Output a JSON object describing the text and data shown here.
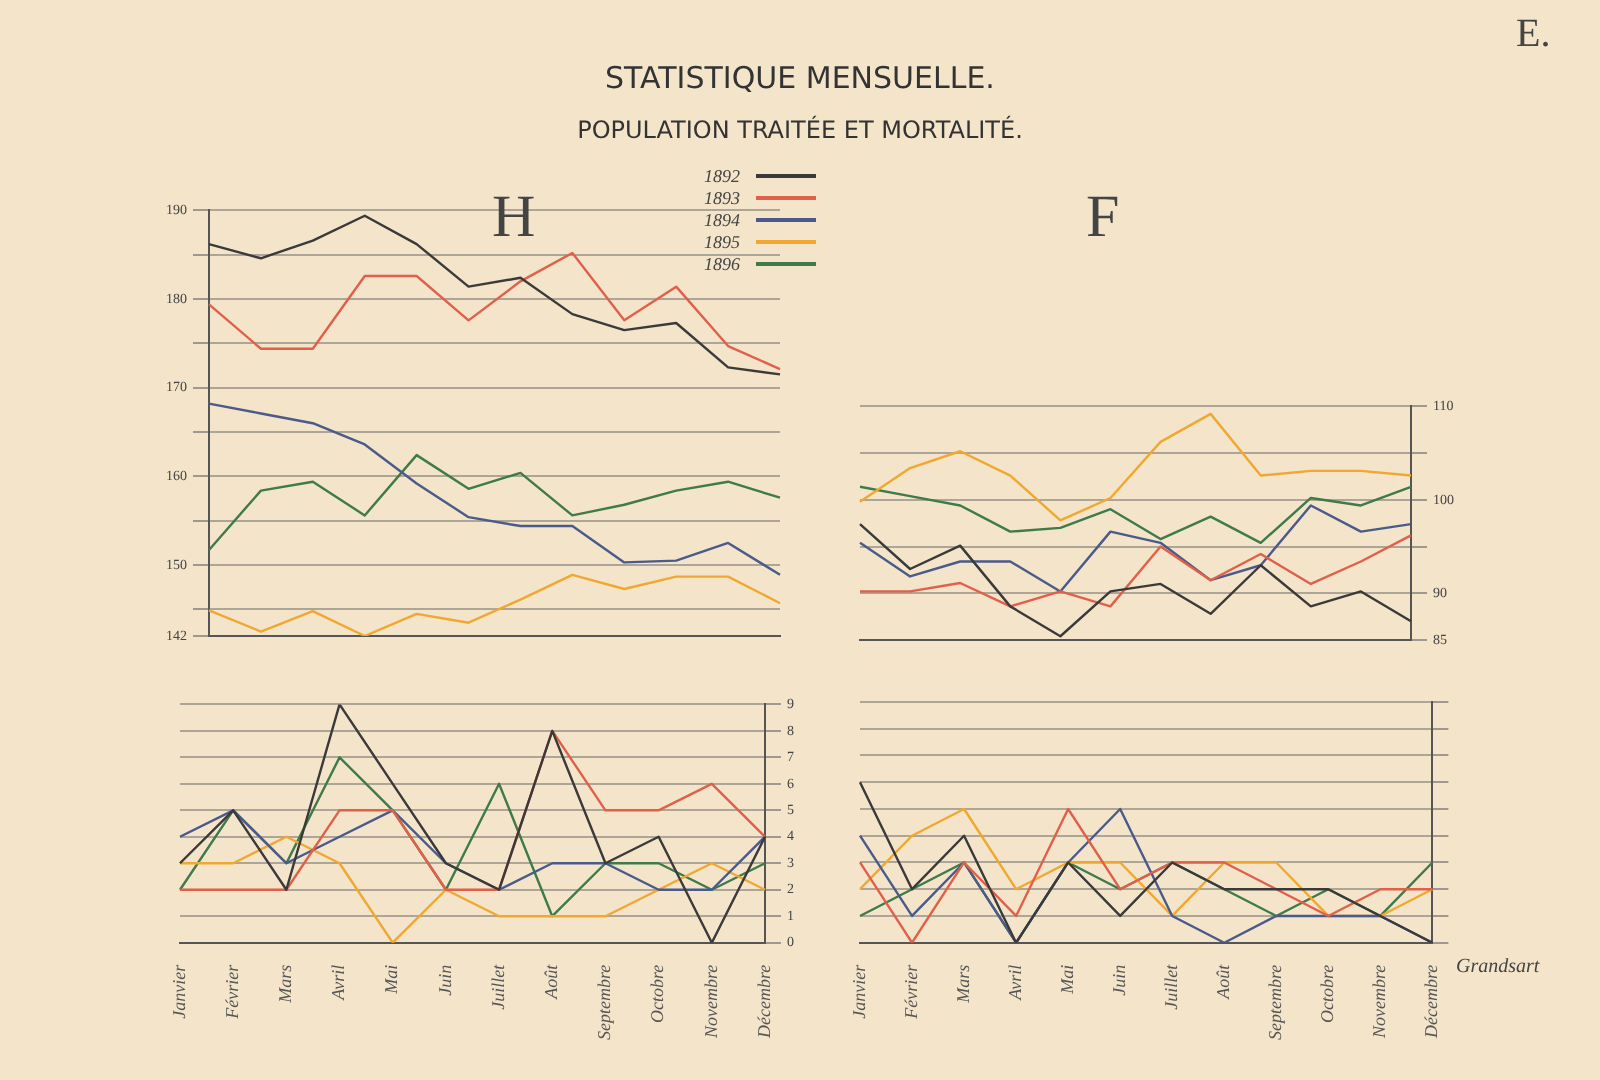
{
  "chart_data": [
    {
      "type": "line",
      "title": "STATISTIQUE MENSUELLE.",
      "subtitle": "POPULATION TRAITÉE ET MORTALITÉ.",
      "annotations": [
        "E.",
        "H"
      ],
      "categories": [
        null,
        null,
        null,
        null,
        null,
        null,
        null,
        null,
        null,
        null,
        null,
        null
      ],
      "series": [
        {
          "name": "1892",
          "color": "#3a3a3a",
          "values": [
            186.2,
            184.6,
            186.6,
            189.4,
            186.2,
            181.4,
            182.4,
            178.3,
            176.5,
            177.3,
            172.3,
            171.5
          ]
        },
        {
          "name": "1893",
          "color": "#e0604a",
          "values": [
            179.4,
            174.4,
            174.4,
            182.6,
            182.6,
            177.6,
            182.0,
            185.2,
            177.6,
            181.4,
            174.7,
            172.1
          ]
        },
        {
          "name": "1894",
          "color": "#4a5a8a",
          "values": [
            168.2,
            167.1,
            166.0,
            163.6,
            159.2,
            155.4,
            154.4,
            154.4,
            150.3,
            150.5,
            152.5,
            148.9
          ]
        },
        {
          "name": "1895",
          "color": "#f0a830",
          "values": [
            144.9,
            142.5,
            144.8,
            142,
            144.5,
            143.5,
            146.1,
            148.9,
            147.3,
            148.7,
            148.7,
            145.7
          ]
        },
        {
          "name": "1896",
          "color": "#3f7a4a",
          "values": [
            151.7,
            158.4,
            159.4,
            155.6,
            162.4,
            158.6,
            160.4,
            155.6,
            156.8,
            158.4,
            159.4,
            157.6
          ]
        }
      ],
      "ylim": [
        142,
        190
      ],
      "yticks": [
        142,
        {
          "value": 145,
          "label": null
        },
        150,
        {
          "value": 155,
          "label": null
        },
        160,
        {
          "value": 165,
          "label": null
        },
        170,
        {
          "value": 175,
          "label": null
        },
        180,
        {
          "value": 185,
          "label": null
        },
        190
      ],
      "grid": "y",
      "legend": "top right",
      "tick_labels": "y"
    },
    {
      "type": "line",
      "categories": [
        "Janvier",
        "Février",
        "Mars",
        "Avril",
        "Mai",
        "Juin",
        "Juillet",
        "Août",
        "Septembre",
        "Octobre",
        "Novembre",
        "Décembre"
      ],
      "series": [
        {
          "color": "#3a3a3a",
          "values": [
            3,
            5,
            2,
            9,
            6,
            3,
            2,
            8,
            3,
            4,
            0,
            4
          ]
        },
        {
          "color": "#e0604a",
          "values": [
            2,
            2,
            2,
            5,
            5,
            2,
            2,
            8,
            5,
            5,
            6,
            4
          ]
        },
        {
          "color": "#4a5a8a",
          "values": [
            4,
            5,
            3,
            4,
            5,
            3,
            2,
            3,
            3,
            2,
            2,
            4
          ]
        },
        {
          "color": "#f0a830",
          "values": [
            3,
            3,
            4,
            3,
            0,
            2,
            1,
            1,
            1,
            2,
            3,
            2
          ]
        },
        {
          "color": "#3f7a4a",
          "values": [
            2,
            5,
            3,
            7,
            5,
            2,
            6,
            1,
            3,
            3,
            2,
            3
          ]
        }
      ],
      "ylim": [
        0,
        9
      ],
      "yticks": [
        0,
        1,
        2,
        3,
        4,
        5,
        6,
        7,
        8,
        9
      ],
      "grid": "y"
    },
    {
      "type": "line",
      "annotations": [
        "F"
      ],
      "categories": [
        null,
        null,
        null,
        null,
        null,
        null,
        null,
        null,
        null,
        null,
        null,
        null
      ],
      "series": [
        {
          "color": "#3a3a3a",
          "values": [
            97.4,
            92.6,
            95.1,
            88.6,
            85.4,
            90.2,
            91.0,
            87.8,
            93.0,
            88.6,
            90.2,
            87.0
          ]
        },
        {
          "color": "#e0604a",
          "values": [
            90.2,
            90.2,
            91.1,
            88.6,
            90.2,
            88.6,
            95.0,
            91.4,
            94.2,
            91.0,
            93.4,
            96.2
          ]
        },
        {
          "color": "#4a5a8a",
          "values": [
            95.4,
            91.8,
            93.4,
            93.4,
            90.2,
            96.6,
            95.4,
            91.4,
            93.0,
            99.4,
            96.6,
            97.4
          ]
        },
        {
          "color": "#f0a830",
          "values": [
            99.8,
            103.4,
            105.2,
            102.6,
            97.8,
            100.2,
            106.2,
            109.2,
            102.6,
            103.1,
            103.1,
            102.6
          ]
        },
        {
          "color": "#3f7a4a",
          "values": [
            101.4,
            100.4,
            99.4,
            96.6,
            97.0,
            99.0,
            95.8,
            98.2,
            95.4,
            100.2,
            99.4,
            101.4
          ]
        }
      ],
      "ylim": [
        85,
        110
      ],
      "yticks": [
        85,
        90,
        {
          "value": 95,
          "label": null
        },
        100,
        {
          "value": 105,
          "label": null
        },
        110
      ],
      "grid": "y",
      "tick_labels": "y"
    },
    {
      "type": "line",
      "annotations": [
        "Grandsart"
      ],
      "categories": [
        "Janvier",
        "Février",
        "Mars",
        "Avril",
        "Mai",
        "Juin",
        "Juillet",
        "Août",
        "Septembre",
        "Octobre",
        "Novembre",
        "Décembre"
      ],
      "series": [
        {
          "color": "#3a3a3a",
          "values": [
            6,
            2,
            4,
            0,
            3,
            1,
            3,
            2,
            2,
            2,
            1,
            0
          ]
        },
        {
          "color": "#e0604a",
          "values": [
            3,
            0,
            3,
            1,
            5,
            2,
            3,
            3,
            2,
            1,
            2,
            2
          ]
        },
        {
          "color": "#4a5a8a",
          "values": [
            4,
            1,
            3,
            0,
            3,
            5,
            1,
            0,
            1,
            1,
            1,
            0
          ]
        },
        {
          "color": "#f0a830",
          "values": [
            2,
            4,
            5,
            2,
            3,
            3,
            1,
            3,
            3,
            1,
            1,
            2
          ]
        },
        {
          "color": "#3f7a4a",
          "values": [
            1,
            2,
            3,
            0,
            3,
            2,
            3,
            2,
            1,
            2,
            1,
            3
          ]
        }
      ],
      "ylim": [
        0,
        9
      ],
      "yticks": [
        0,
        1,
        2,
        3,
        4,
        5,
        6,
        7,
        8,
        9
      ],
      "grid": "y",
      "tick_labels": "x"
    }
  ]
}
